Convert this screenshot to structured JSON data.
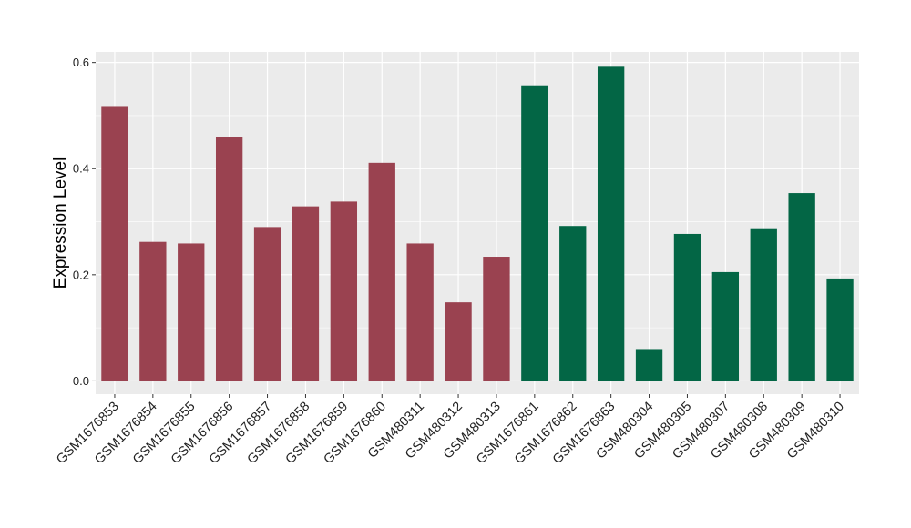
{
  "chart_data": {
    "type": "bar",
    "title": "",
    "xlabel": "",
    "ylabel": "Expression Level",
    "ylim": [
      -0.025,
      0.62
    ],
    "yticks": [
      0.0,
      0.2,
      0.4,
      0.6
    ],
    "ytick_labels": [
      "0.0",
      "0.2",
      "0.4",
      "0.6"
    ],
    "grid": true,
    "legend": "none",
    "categories": [
      "GSM1676853",
      "GSM1676854",
      "GSM1676855",
      "GSM1676856",
      "GSM1676857",
      "GSM1676858",
      "GSM1676859",
      "GSM1676860",
      "GSM480311",
      "GSM480312",
      "GSM480313",
      "GSM1676861",
      "GSM1676862",
      "GSM1676863",
      "GSM480304",
      "GSM480305",
      "GSM480307",
      "GSM480308",
      "GSM480309",
      "GSM480310"
    ],
    "values": [
      0.518,
      0.262,
      0.259,
      0.459,
      0.29,
      0.329,
      0.338,
      0.411,
      0.259,
      0.148,
      0.234,
      0.557,
      0.292,
      0.592,
      0.06,
      0.277,
      0.205,
      0.286,
      0.354,
      0.193
    ],
    "group_sizes": [
      11,
      9
    ],
    "group_colors": [
      "#9a4250",
      "#036645"
    ],
    "panel_background": "#ebebeb",
    "grid_color": "#ffffff"
  }
}
